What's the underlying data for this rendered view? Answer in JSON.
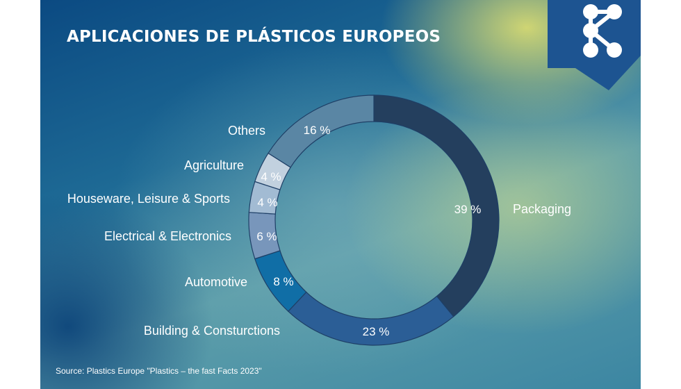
{
  "title": "APLICACIONES DE PLÁSTICOS EUROPEOS",
  "source": "Source: Plastics Europe \"Plastics – the fast Facts 2023\"",
  "chart_data": {
    "type": "donut",
    "categories": [
      "Packaging",
      "Building & Consturctions",
      "Automotive",
      "Electrical & Electronics",
      "Houseware, Leisure & Sports",
      "Agriculture",
      "Others"
    ],
    "values": [
      39,
      23,
      8,
      6,
      4,
      4,
      16
    ],
    "value_labels": [
      "39 %",
      "23 %",
      "8 %",
      "6 %",
      "4 %",
      "4 %",
      "16 %"
    ],
    "colors": [
      "#243f5e",
      "#2b5e96",
      "#106ea6",
      "#7896bb",
      "#a2bbd3",
      "#c2d1df",
      "#5a86a4"
    ],
    "unit": "%"
  },
  "colors": {
    "title": "#ffffff",
    "logo_background": "#1d5491",
    "slice_border": "#1e3f66"
  }
}
